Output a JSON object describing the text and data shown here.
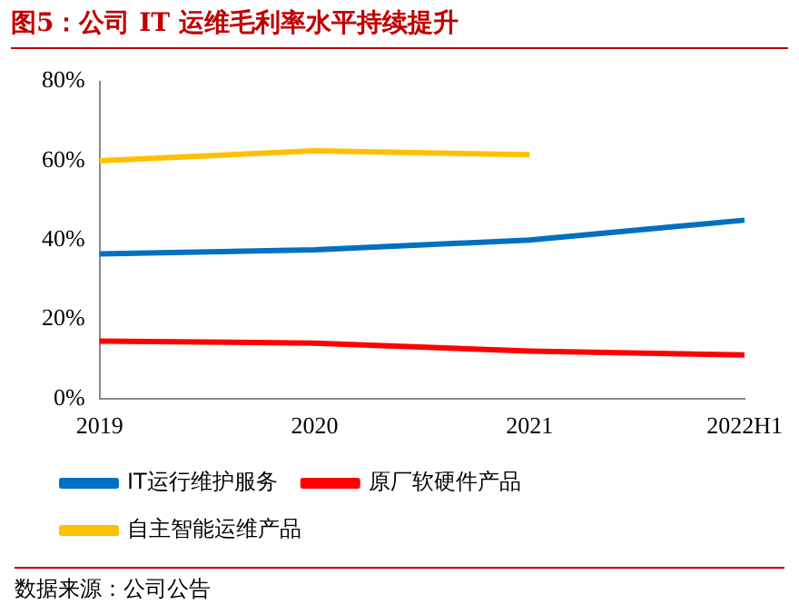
{
  "chart_data": {
    "type": "line",
    "title": "图5：公司 IT 运维毛利率水平持续提升",
    "categories": [
      "2019",
      "2020",
      "2021",
      "2022H1"
    ],
    "series": [
      {
        "name": "IT运行维护服务",
        "color": "#0070c0",
        "values": [
          36.5,
          37.5,
          40,
          45
        ]
      },
      {
        "name": "原厂软硬件产品",
        "color": "#ff0000",
        "values": [
          14.5,
          14,
          12,
          11
        ]
      },
      {
        "name": "自主智能运维产品",
        "color": "#ffc000",
        "values": [
          60,
          62.5,
          61.5,
          null
        ]
      }
    ],
    "ylim": [
      0,
      80
    ],
    "yticks": [
      {
        "value": 0,
        "label": "0%"
      },
      {
        "value": 20,
        "label": "20%"
      },
      {
        "value": 40,
        "label": "40%"
      },
      {
        "value": 60,
        "label": "60%"
      },
      {
        "value": 80,
        "label": "80%"
      }
    ],
    "grid": false,
    "legend": "bottom",
    "marker": "none",
    "line_style": "solid",
    "annotations": [
      "数据来源：公司公告"
    ]
  }
}
